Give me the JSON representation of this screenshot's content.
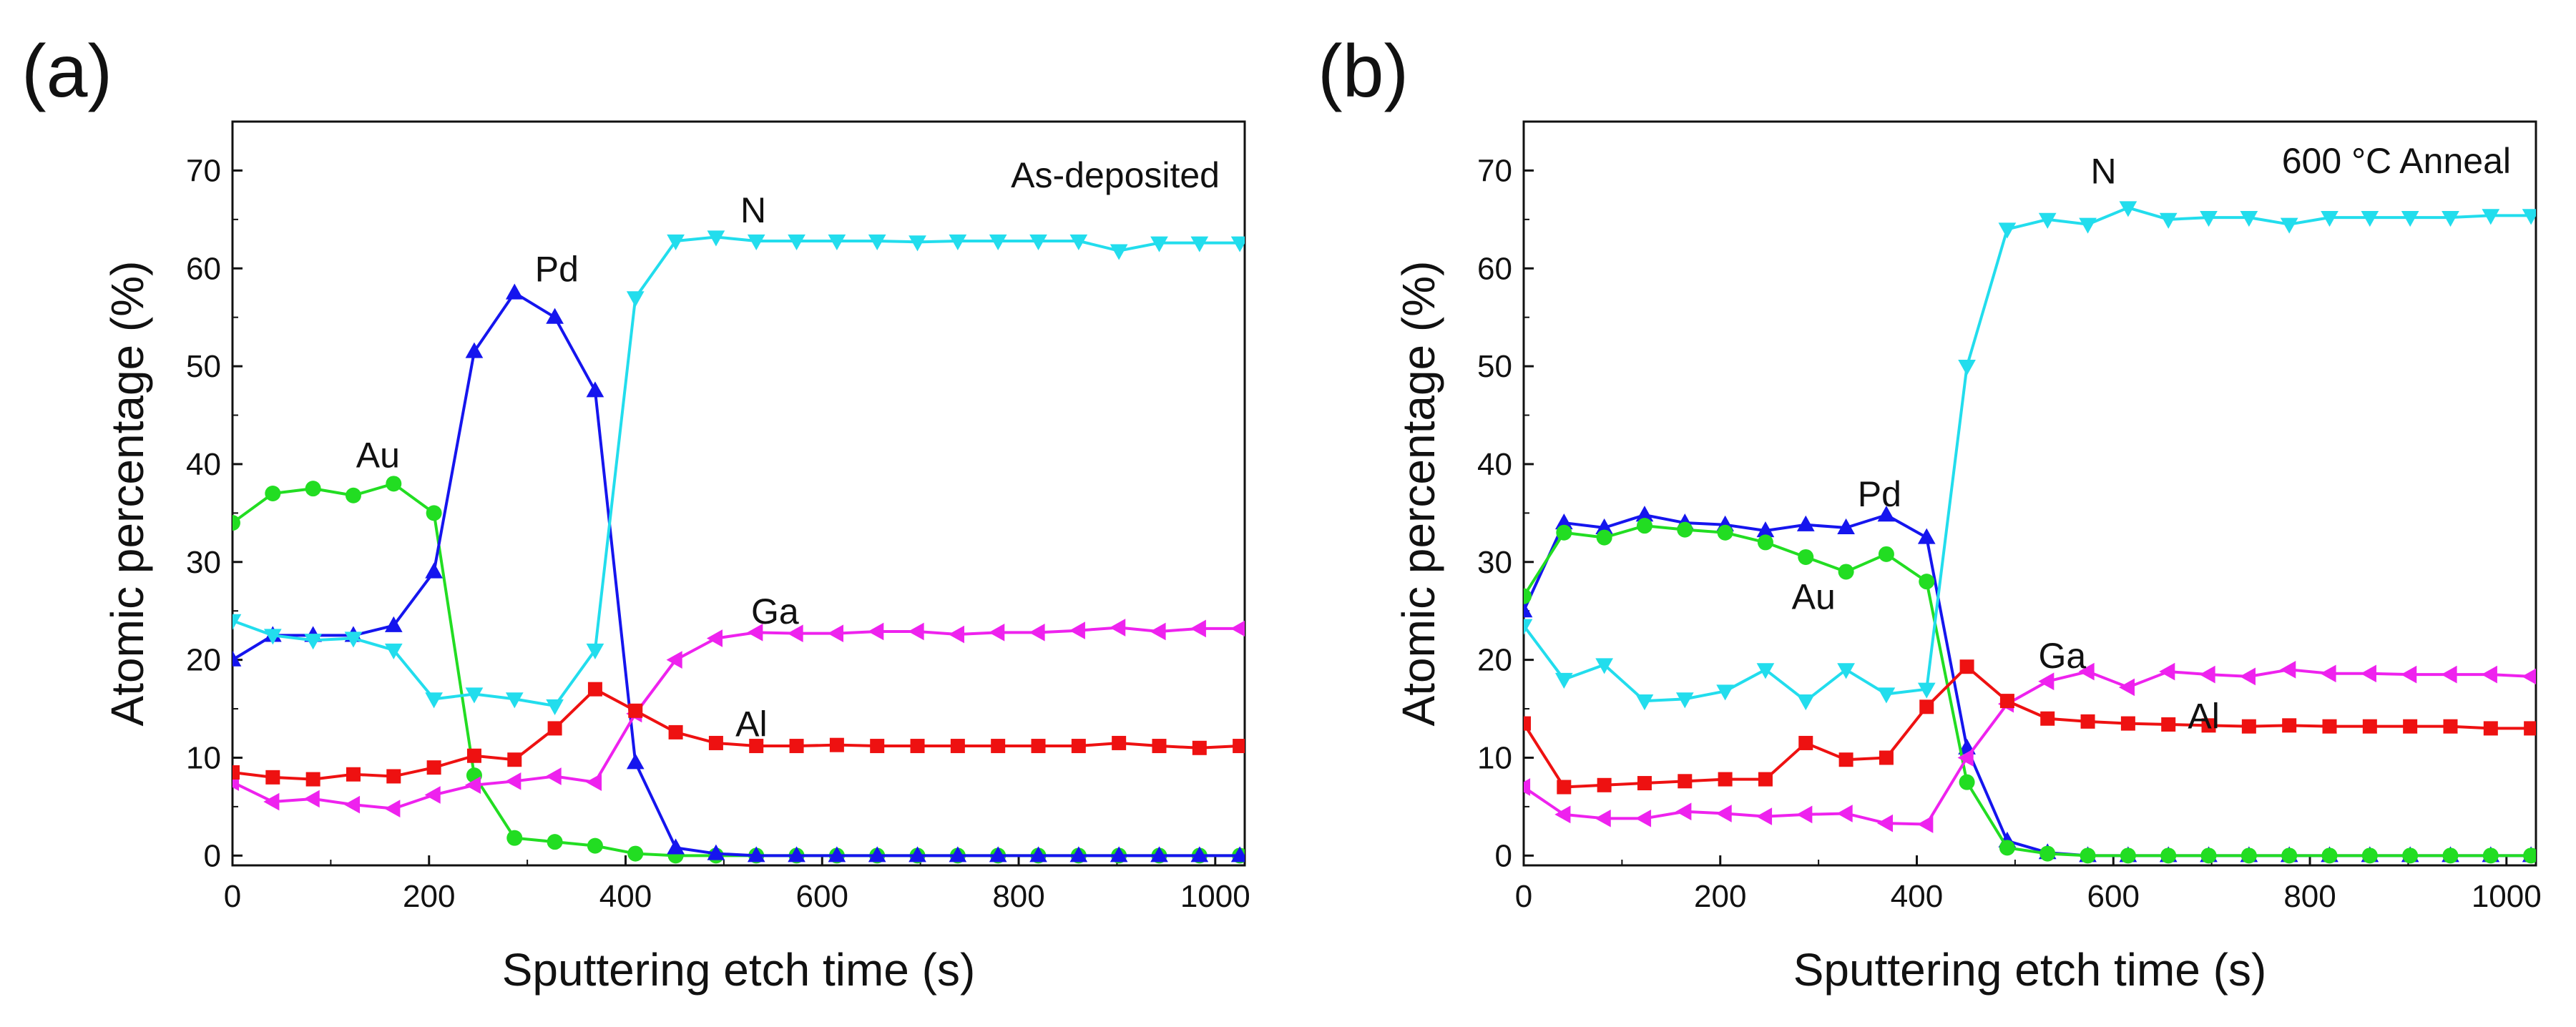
{
  "chart_data": [
    {
      "type": "line",
      "panel_label": "(a)",
      "annotation": "As-deposited",
      "xlabel": "Sputtering etch time (s)",
      "ylabel": "Atomic percentage (%)",
      "xlim": [
        0,
        1030
      ],
      "ylim": [
        -1,
        75
      ],
      "xticks": [
        0,
        200,
        400,
        600,
        800,
        1000
      ],
      "yticks": [
        0,
        10,
        20,
        30,
        40,
        50,
        60,
        70
      ],
      "x": [
        0,
        41,
        82,
        123,
        164,
        205,
        246,
        287,
        328,
        369,
        410,
        451,
        492,
        533,
        574,
        615,
        656,
        697,
        738,
        779,
        820,
        861,
        902,
        943,
        984,
        1025
      ],
      "series": [
        {
          "name": "Au",
          "color": "#22dd22",
          "marker": "circle",
          "label_pos": [
            148,
            41
          ],
          "values": [
            34,
            37,
            37.5,
            36.8,
            38,
            35,
            8.2,
            1.8,
            1.4,
            1,
            0.2,
            0,
            0,
            0,
            0,
            0,
            0,
            0,
            0,
            0,
            0,
            0,
            0,
            0,
            0,
            0
          ]
        },
        {
          "name": "Pd",
          "color": "#1515ee",
          "marker": "triangle-up",
          "label_pos": [
            330,
            60
          ],
          "values": [
            20,
            22.5,
            22.5,
            22.5,
            23.5,
            29,
            51.5,
            57.5,
            55,
            47.5,
            9.5,
            0.8,
            0.2,
            0,
            0,
            0,
            0,
            0,
            0,
            0,
            0,
            0,
            0,
            0,
            0,
            0
          ]
        },
        {
          "name": "N",
          "color": "#22dded",
          "marker": "triangle-down",
          "label_pos": [
            530,
            66
          ],
          "values": [
            24,
            22.5,
            22,
            22.2,
            21,
            16,
            16.5,
            16,
            15.3,
            21,
            57,
            62.8,
            63.2,
            62.8,
            62.8,
            62.8,
            62.8,
            62.7,
            62.8,
            62.8,
            62.8,
            62.8,
            61.8,
            62.6,
            62.6,
            62.6
          ]
        },
        {
          "name": "Ga",
          "color": "#ee22ee",
          "marker": "triangle-left",
          "label_pos": [
            552,
            25
          ],
          "values": [
            7.5,
            5.5,
            5.8,
            5.2,
            4.8,
            6.2,
            7.2,
            7.6,
            8.1,
            7.5,
            14.5,
            20,
            22.2,
            22.8,
            22.7,
            22.7,
            22.9,
            22.9,
            22.6,
            22.8,
            22.8,
            23,
            23.3,
            22.9,
            23.2,
            23.2
          ]
        },
        {
          "name": "Al",
          "color": "#ee1111",
          "marker": "square",
          "label_pos": [
            528,
            13.5
          ],
          "values": [
            8.5,
            8,
            7.8,
            8.3,
            8.1,
            9,
            10.2,
            9.8,
            13,
            17,
            14.8,
            12.6,
            11.5,
            11.2,
            11.2,
            11.3,
            11.2,
            11.2,
            11.2,
            11.2,
            11.2,
            11.2,
            11.5,
            11.2,
            11,
            11.2
          ]
        }
      ]
    },
    {
      "type": "line",
      "panel_label": "(b)",
      "annotation": "600 °C Anneal",
      "xlabel": "Sputtering etch time (s)",
      "ylabel": "Atomic percentage (%)",
      "xlim": [
        0,
        1030
      ],
      "ylim": [
        -1,
        75
      ],
      "xticks": [
        0,
        200,
        400,
        600,
        800,
        1000
      ],
      "yticks": [
        0,
        10,
        20,
        30,
        40,
        50,
        60,
        70
      ],
      "x": [
        0,
        41,
        82,
        123,
        164,
        205,
        246,
        287,
        328,
        369,
        410,
        451,
        492,
        533,
        574,
        615,
        656,
        697,
        738,
        779,
        820,
        861,
        902,
        943,
        984,
        1025
      ],
      "series": [
        {
          "name": "Pd",
          "color": "#1515ee",
          "marker": "triangle-up",
          "label_pos": [
            362,
            37
          ],
          "values": [
            25,
            34,
            33.5,
            34.8,
            34,
            33.8,
            33.2,
            33.8,
            33.5,
            34.8,
            32.5,
            11,
            1.5,
            0.3,
            0,
            0,
            0,
            0,
            0,
            0,
            0,
            0,
            0,
            0,
            0,
            0
          ]
        },
        {
          "name": "Au",
          "color": "#22dd22",
          "marker": "circle",
          "label_pos": [
            295,
            26.5
          ],
          "values": [
            26.5,
            33,
            32.5,
            33.7,
            33.3,
            33,
            32,
            30.5,
            29,
            30.8,
            28,
            7.5,
            0.8,
            0.2,
            0,
            0,
            0,
            0,
            0,
            0,
            0,
            0,
            0,
            0,
            0,
            0
          ]
        },
        {
          "name": "N",
          "color": "#22dded",
          "marker": "triangle-down",
          "label_pos": [
            590,
            70
          ],
          "values": [
            23.5,
            18,
            19.5,
            15.8,
            16,
            16.8,
            19,
            15.8,
            19,
            16.5,
            17,
            50,
            64,
            65,
            64.5,
            66.2,
            65,
            65.2,
            65.2,
            64.5,
            65.2,
            65.2,
            65.2,
            65.2,
            65.4,
            65.4
          ]
        },
        {
          "name": "Ga",
          "color": "#ee22ee",
          "marker": "triangle-left",
          "label_pos": [
            548,
            20.5
          ],
          "values": [
            7,
            4.2,
            3.8,
            3.8,
            4.5,
            4.3,
            4,
            4.2,
            4.3,
            3.3,
            3.2,
            10,
            15.5,
            17.8,
            18.8,
            17.2,
            18.8,
            18.5,
            18.3,
            19,
            18.6,
            18.6,
            18.5,
            18.5,
            18.5,
            18.3
          ]
        },
        {
          "name": "Al",
          "color": "#ee1111",
          "marker": "square",
          "label_pos": [
            692,
            14.3
          ],
          "values": [
            13.5,
            7,
            7.2,
            7.4,
            7.6,
            7.8,
            7.8,
            11.5,
            9.8,
            10,
            15.2,
            19.3,
            15.8,
            14,
            13.7,
            13.5,
            13.4,
            13.3,
            13.2,
            13.3,
            13.2,
            13.2,
            13.2,
            13.2,
            13,
            13
          ]
        }
      ]
    }
  ]
}
